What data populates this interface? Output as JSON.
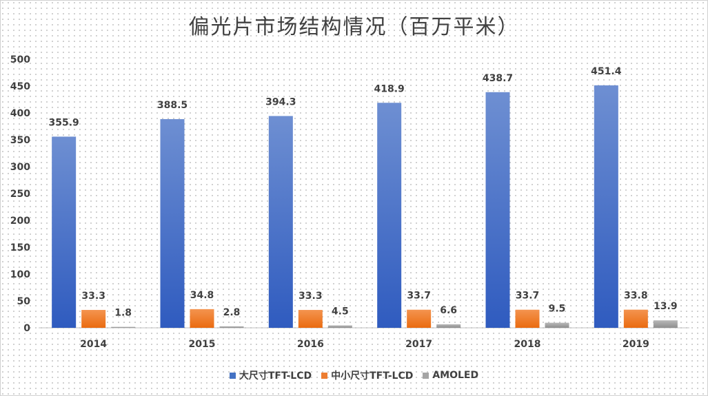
{
  "title": "偏光片市场结构情况（百万平米）",
  "chart_data": {
    "type": "bar",
    "title": "偏光片市场结构情况（百万平米）",
    "categories": [
      "2014",
      "2015",
      "2016",
      "2017",
      "2018",
      "2019"
    ],
    "series": [
      {
        "name": "大尺寸TFT-LCD",
        "color": "#4472c4",
        "values": [
          355.9,
          388.5,
          394.3,
          418.9,
          438.7,
          451.4
        ]
      },
      {
        "name": "中小尺寸TFT-LCD",
        "color": "#ed7d31",
        "values": [
          33.3,
          34.8,
          33.3,
          33.7,
          33.7,
          33.8
        ]
      },
      {
        "name": "AMOLED",
        "color": "#a5a5a5",
        "values": [
          1.8,
          2.8,
          4.5,
          6.6,
          9.5,
          13.9
        ]
      }
    ],
    "yticks": [
      "0",
      "50",
      "100",
      "150",
      "200",
      "250",
      "300",
      "350",
      "400",
      "450",
      "500"
    ],
    "ylim": [
      0,
      500
    ],
    "xlabel": "",
    "ylabel": "",
    "grid": false,
    "data_labels": true,
    "legend_position": "bottom"
  }
}
